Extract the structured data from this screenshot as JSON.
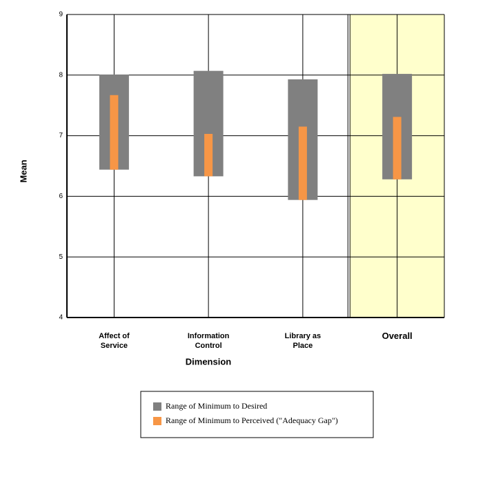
{
  "chart_data": {
    "type": "range_bar",
    "categories": [
      "Affect of Service",
      "Information Control",
      "Library as Place",
      "Overall"
    ],
    "series": [
      {
        "name": "Range of Minimum to Desired",
        "color": "#808080",
        "low": [
          6.44,
          6.33,
          5.94,
          6.28
        ],
        "high": [
          8.01,
          8.07,
          7.93,
          8.02
        ]
      },
      {
        "name": "Range of Minimum to Perceived (\"Adequacy Gap\")",
        "color": "#f79646",
        "low": [
          6.44,
          6.33,
          5.94,
          6.28
        ],
        "high": [
          7.67,
          7.03,
          7.15,
          7.31
        ]
      }
    ],
    "xlabel": "Dimension",
    "ylabel": "Mean",
    "ylim": [
      4,
      9
    ],
    "yticks": [
      4,
      5,
      6,
      7,
      8,
      9
    ],
    "grid": true,
    "highlight_color": "#ffffcc"
  }
}
